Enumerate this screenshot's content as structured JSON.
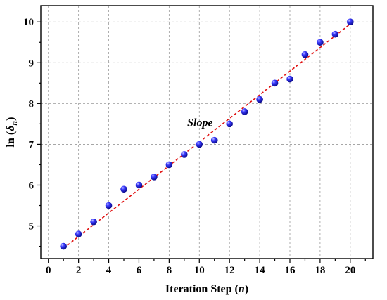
{
  "chart_data": {
    "type": "scatter",
    "title": "",
    "xlabel": "Iteration Step (n)",
    "xlabel_parts": {
      "prefix": "Iteration Step (",
      "var": "n",
      "suffix": ")"
    },
    "ylabel": "ln (δn)",
    "ylabel_parts": {
      "prefix": "ln (",
      "var": "δ",
      "sub": "n",
      "suffix": ")"
    },
    "xlim": [
      -0.5,
      21.5
    ],
    "ylim": [
      4.2,
      10.4
    ],
    "xticks": [
      0,
      2,
      4,
      6,
      8,
      10,
      12,
      14,
      16,
      18,
      20
    ],
    "yticks": [
      5,
      6,
      7,
      8,
      9,
      10
    ],
    "grid": true,
    "annotation": {
      "text": "Slope",
      "x": 9.2,
      "y": 7.45
    },
    "series": [
      {
        "marker_color": "#1010c8",
        "x": [
          1,
          2,
          3,
          4,
          5,
          6,
          7,
          8,
          9,
          10,
          11,
          12,
          13,
          14,
          15,
          16,
          17,
          18,
          19,
          20
        ],
        "y": [
          4.5,
          4.8,
          5.1,
          5.5,
          5.9,
          6.0,
          6.2,
          6.5,
          6.75,
          7.0,
          7.1,
          7.5,
          7.8,
          8.1,
          8.5,
          8.6,
          9.2,
          9.5,
          9.7,
          10.0
        ]
      }
    ],
    "fit_line": {
      "color": "#e01010",
      "x": [
        1,
        20
      ],
      "y": [
        4.45,
        9.95
      ]
    }
  }
}
